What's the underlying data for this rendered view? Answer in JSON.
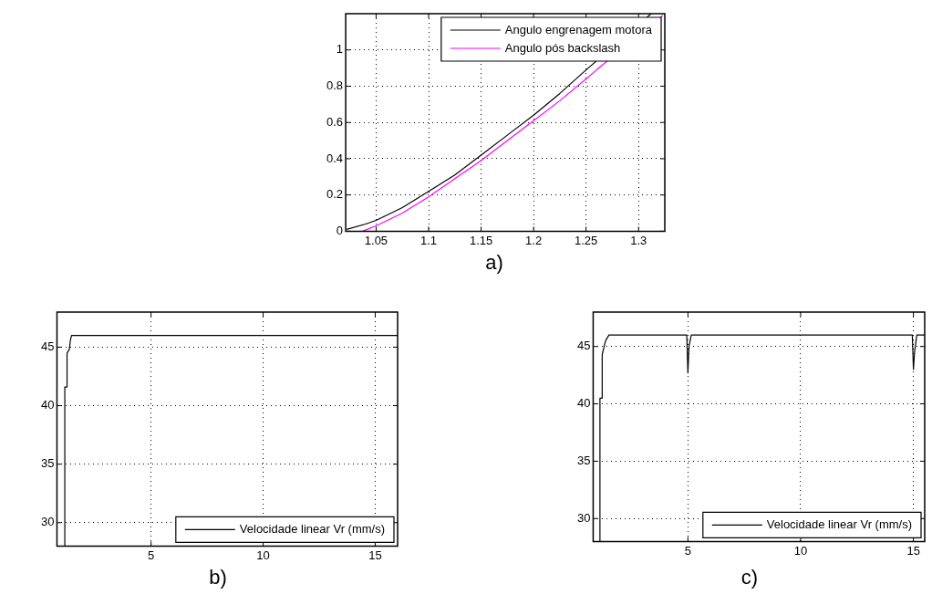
{
  "chart_data": [
    {
      "type": "line",
      "annotations": [
        "a)"
      ],
      "xlim": [
        1.021,
        1.325
      ],
      "ylim": [
        0,
        1.2
      ],
      "xticks": [
        1.05,
        1.1,
        1.15,
        1.2,
        1.25,
        1.3
      ],
      "yticks": [
        0,
        0.2,
        0.4,
        0.6,
        0.8,
        1
      ],
      "grid": true,
      "legend": "top right",
      "series": [
        {
          "name": "Angulo engrenagem motora",
          "color": "#000000",
          "x": [
            1.022,
            1.04,
            1.05,
            1.075,
            1.1,
            1.125,
            1.15,
            1.175,
            1.2,
            1.225,
            1.25,
            1.312
          ],
          "values": [
            0.01,
            0.04,
            0.06,
            0.13,
            0.22,
            0.31,
            0.42,
            0.53,
            0.64,
            0.76,
            0.89,
            1.2
          ]
        },
        {
          "name": "Angulo pós backslash",
          "color": "#ff00ff",
          "x": [
            1.037,
            1.05,
            1.075,
            1.1,
            1.125,
            1.15,
            1.175,
            1.2,
            1.225,
            1.25,
            1.26,
            1.323
          ],
          "values": [
            0,
            0.03,
            0.1,
            0.19,
            0.29,
            0.39,
            0.5,
            0.61,
            0.72,
            0.84,
            0.89,
            1.19
          ]
        }
      ]
    },
    {
      "type": "line",
      "annotations": [
        "b)"
      ],
      "xlim": [
        0.8,
        16
      ],
      "ylim": [
        28,
        48
      ],
      "xticks": [
        5,
        10,
        15
      ],
      "yticks": [
        30,
        35,
        40,
        45
      ],
      "grid": true,
      "legend": "bottom right",
      "series": [
        {
          "name": "Velocidade linear Vr (mm/s)",
          "color": "#000000",
          "x": [
            1.15,
            1.15,
            1.25,
            1.25,
            1.35,
            1.4,
            1.45,
            16
          ],
          "values": [
            28,
            41.6,
            41.6,
            44.5,
            44.8,
            45.6,
            46,
            46
          ]
        }
      ]
    },
    {
      "type": "line",
      "annotations": [
        "c)"
      ],
      "xlim": [
        0.8,
        15.5
      ],
      "ylim": [
        28,
        48
      ],
      "xticks": [
        5,
        10,
        15
      ],
      "yticks": [
        30,
        35,
        40,
        45
      ],
      "grid": true,
      "legend": "bottom right",
      "series": [
        {
          "name": "Velocidade linear Vr (mm/s)",
          "color": "#000000",
          "x": [
            1.1,
            1.1,
            1.2,
            1.2,
            1.35,
            1.5,
            4.95,
            5,
            5.05,
            5.15,
            14.95,
            15,
            15.05,
            15.15,
            15.5
          ],
          "values": [
            28,
            40.5,
            40.5,
            44.3,
            45.5,
            46,
            46,
            42.7,
            45,
            46,
            46,
            43,
            44.5,
            46,
            46
          ]
        }
      ]
    }
  ]
}
